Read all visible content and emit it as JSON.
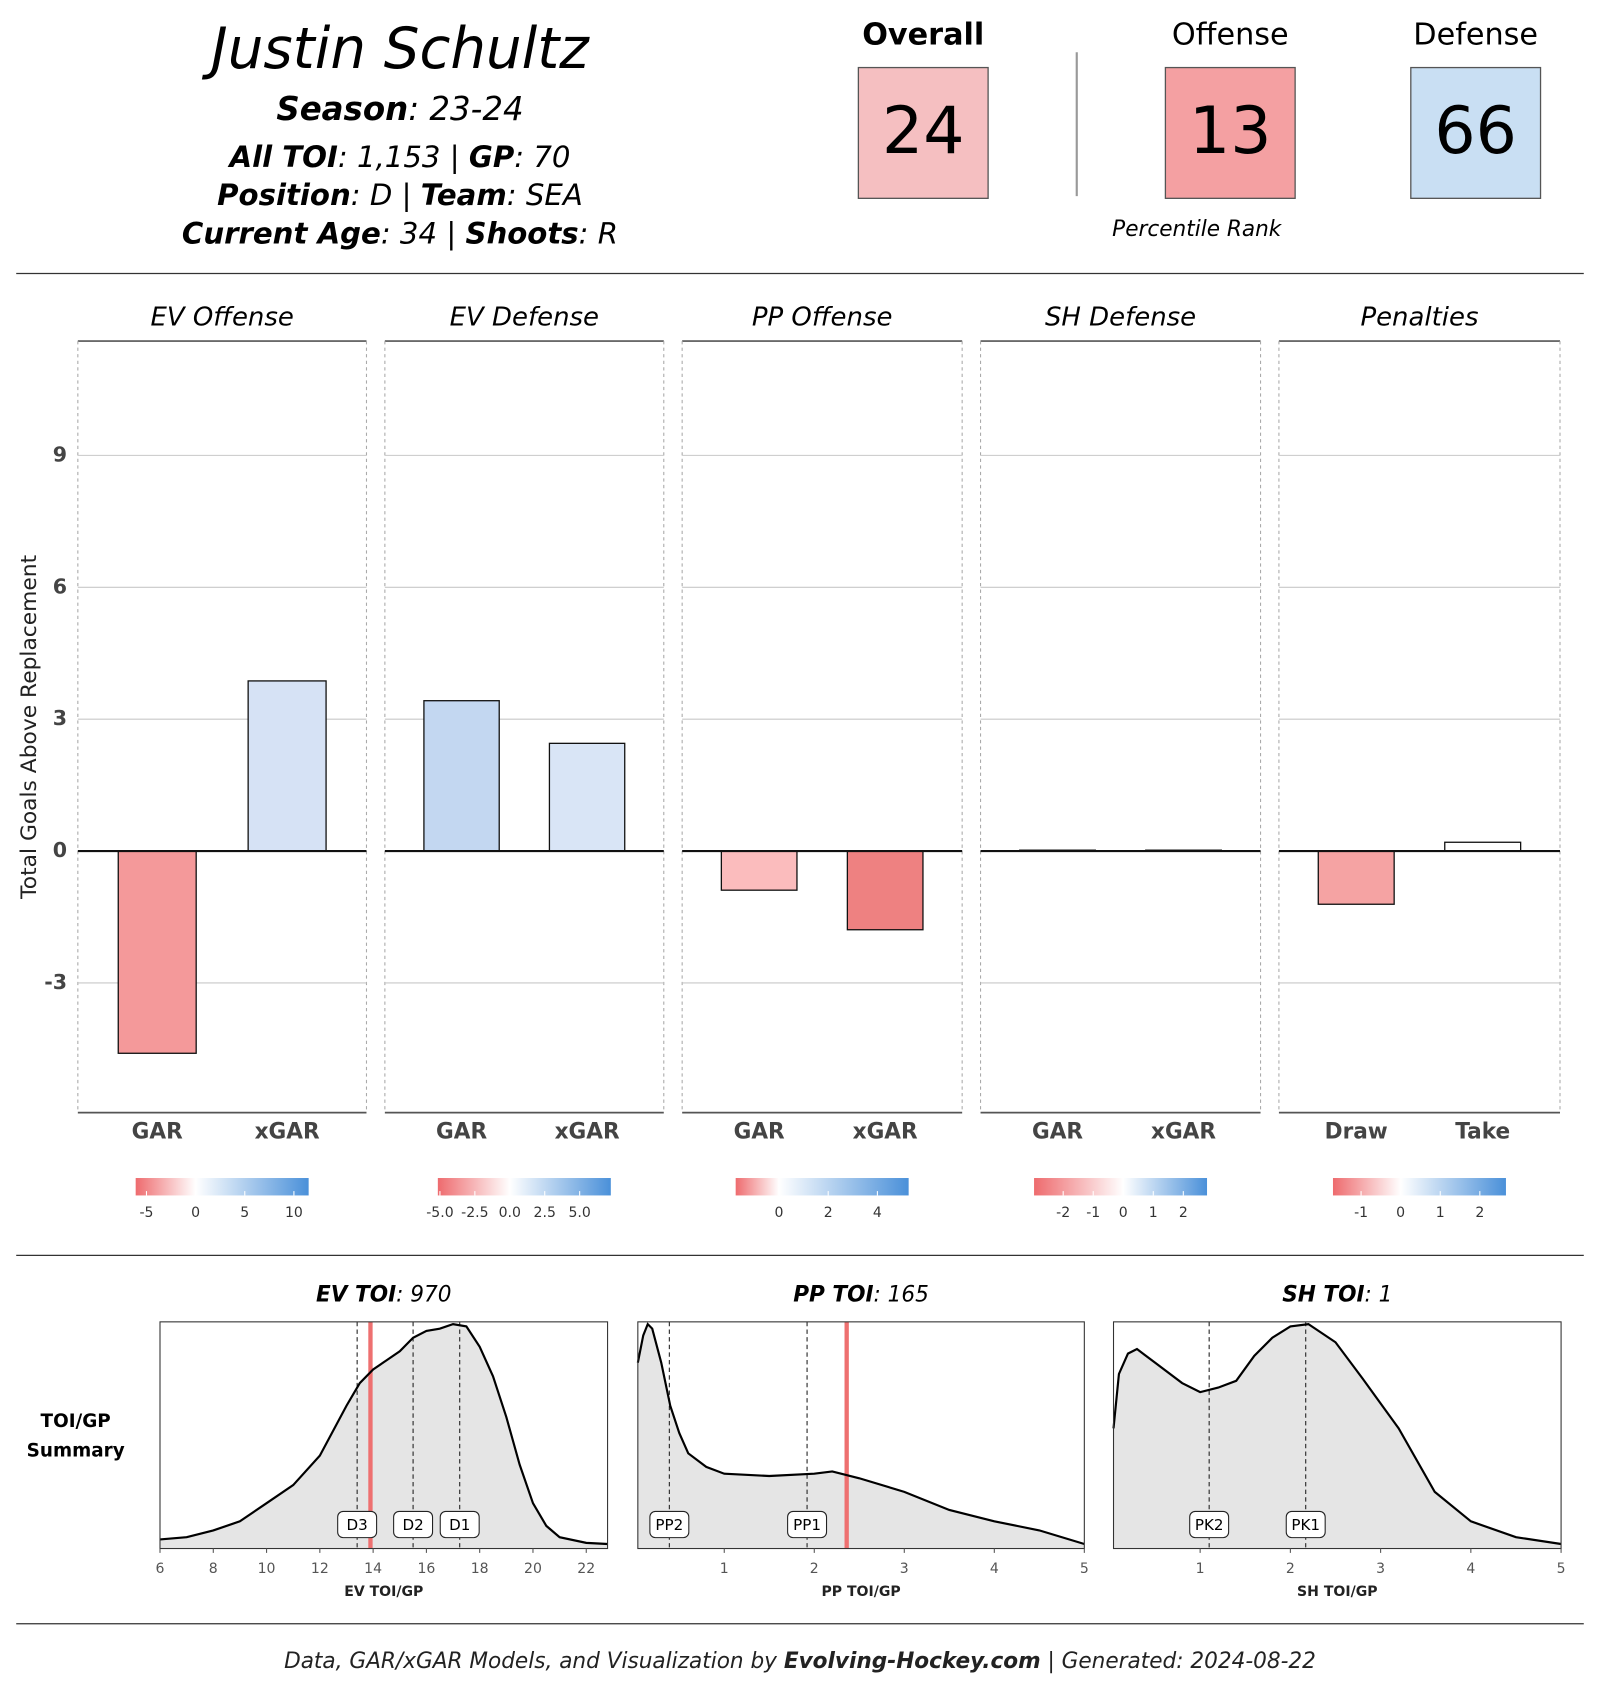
{
  "header": {
    "name": "Justin Schultz",
    "lines": [
      [
        {
          "text": "Season",
          "bold": true
        },
        {
          "text": ": 23-24"
        }
      ],
      [
        {
          "text": "All TOI",
          "bold": true
        },
        {
          "text": ": 1,153 | "
        },
        {
          "text": "GP",
          "bold": true
        },
        {
          "text": ": 70"
        }
      ],
      [
        {
          "text": "Position",
          "bold": true
        },
        {
          "text": ": D | "
        },
        {
          "text": "Team",
          "bold": true
        },
        {
          "text": ": SEA"
        }
      ],
      [
        {
          "text": "Current Age",
          "bold": true
        },
        {
          "text": ": 34 | "
        },
        {
          "text": "Shoots",
          "bold": true
        },
        {
          "text": ": R"
        }
      ]
    ]
  },
  "percentiles": {
    "items": [
      {
        "label": "Overall",
        "value": 24,
        "color": "#f5bfc1",
        "bold": true
      },
      {
        "label": "Offense",
        "value": 13,
        "color": "#f4a0a2",
        "bold": false
      },
      {
        "label": "Defense",
        "value": 66,
        "color": "#c9dff3",
        "bold": false
      }
    ],
    "caption": "Percentile Rank"
  },
  "chart_data": [
    {
      "type": "bar",
      "title": "EV Offense",
      "ylabel": "Total Goals Above Replacement",
      "categories": [
        "GAR",
        "xGAR"
      ],
      "values": [
        -4.6,
        3.87
      ],
      "colors": [
        "#f4999a",
        "#d6e2f5"
      ],
      "ylim": [
        -5.95,
        11.6
      ],
      "yticks": [
        -3,
        0,
        3,
        6,
        9
      ],
      "grid": true,
      "colorbar": {
        "lim": [
          -6.1,
          11.5
        ],
        "ticks": [
          -5,
          0,
          5,
          10
        ],
        "colors": [
          "#ee6b6e",
          "#ffffff",
          "#4a90d9"
        ]
      }
    },
    {
      "type": "bar",
      "title": "EV Defense",
      "categories": [
        "GAR",
        "xGAR"
      ],
      "values": [
        3.42,
        2.45
      ],
      "colors": [
        "#c3d7f1",
        "#d9e5f6"
      ],
      "ylim": [
        -5.95,
        11.6
      ],
      "yticks": [
        -3,
        0,
        3,
        6,
        9
      ],
      "grid": true,
      "colorbar": {
        "lim": [
          -5.15,
          7.23
        ],
        "ticks": [
          {
            "value": -5,
            "label": "-5.0"
          },
          -2.5,
          {
            "value": 0,
            "label": "0.0"
          },
          2.5,
          {
            "value": 5,
            "label": "5.0"
          }
        ],
        "colors": [
          "#ee6b6e",
          "#ffffff",
          "#4a90d9"
        ]
      }
    },
    {
      "type": "bar",
      "title": "PP Offense",
      "categories": [
        "GAR",
        "xGAR"
      ],
      "values": [
        -0.89,
        -1.79
      ],
      "colors": [
        "#fbbcbd",
        "#ee8181"
      ],
      "ylim": [
        -5.95,
        11.6
      ],
      "yticks": [
        -3,
        0,
        3,
        6,
        9
      ],
      "grid": true,
      "colorbar": {
        "lim": [
          -1.76,
          5.27
        ],
        "ticks": [
          0,
          2,
          4
        ],
        "colors": [
          "#ee6b6e",
          "#ffffff",
          "#4a90d9"
        ]
      }
    },
    {
      "type": "bar",
      "title": "SH Defense",
      "categories": [
        "GAR",
        "xGAR"
      ],
      "values": [
        0.02,
        0.02
      ],
      "colors": [
        "#fdf6f6",
        "#f6f8fd"
      ],
      "ylim": [
        -5.95,
        11.6
      ],
      "yticks": [
        -3,
        0,
        3,
        6,
        9
      ],
      "grid": true,
      "colorbar": {
        "lim": [
          -2.97,
          2.79
        ],
        "ticks": [
          -2,
          -1,
          0,
          1,
          2
        ],
        "colors": [
          "#ee6b6e",
          "#ffffff",
          "#4a90d9"
        ]
      }
    },
    {
      "type": "bar",
      "title": "Penalties",
      "categories": [
        "Draw",
        "Take"
      ],
      "values": [
        -1.21,
        0.2
      ],
      "colors": [
        "#f5a3a3",
        "#ffffff"
      ],
      "ylim": [
        -5.95,
        11.6
      ],
      "yticks": [
        -3,
        0,
        3,
        6,
        9
      ],
      "grid": true,
      "colorbar": {
        "lim": [
          -1.71,
          2.66
        ],
        "ticks": [
          -1,
          0,
          1,
          2
        ],
        "colors": [
          "#ee6b6e",
          "#ffffff",
          "#4a90d9"
        ]
      }
    },
    {
      "type": "area",
      "title": [
        {
          "text": "EV TOI",
          "bold": true
        },
        {
          "text": ": 970"
        }
      ],
      "xlabel": "EV TOI/GP",
      "x": [
        6,
        7,
        8,
        9,
        10,
        11,
        12,
        13,
        13.5,
        14,
        14.5,
        15,
        15.5,
        16,
        16.5,
        17,
        17.5,
        18,
        18.5,
        19,
        19.5,
        20,
        20.5,
        21,
        22,
        22.8
      ],
      "values": [
        0.04,
        0.05,
        0.08,
        0.12,
        0.2,
        0.28,
        0.41,
        0.63,
        0.73,
        0.79,
        0.83,
        0.87,
        0.93,
        0.96,
        0.97,
        0.99,
        0.98,
        0.89,
        0.76,
        0.58,
        0.37,
        0.2,
        0.1,
        0.05,
        0.025,
        0.02
      ],
      "xlim": [
        6,
        22.8
      ],
      "xticks": [
        6,
        8,
        10,
        12,
        14,
        16,
        18,
        20,
        22
      ],
      "ylim": [
        0,
        1
      ],
      "color": "#e5e5e5",
      "markers": [
        {
          "label": "D3",
          "x": 13.4
        },
        {
          "label": "D2",
          "x": 15.5
        },
        {
          "label": "D1",
          "x": 17.25
        }
      ],
      "player_x": 13.9,
      "player_color": "#ee7070"
    },
    {
      "type": "area",
      "title": [
        {
          "text": "PP TOI",
          "bold": true
        },
        {
          "text": ": 165"
        }
      ],
      "xlabel": "PP TOI/GP",
      "x": [
        0.04,
        0.1,
        0.15,
        0.2,
        0.3,
        0.4,
        0.5,
        0.6,
        0.8,
        1.0,
        1.5,
        2.0,
        2.2,
        2.5,
        3,
        3.5,
        4,
        4.5,
        5
      ],
      "values": [
        0.82,
        0.94,
        0.99,
        0.97,
        0.82,
        0.63,
        0.51,
        0.42,
        0.36,
        0.33,
        0.32,
        0.33,
        0.34,
        0.31,
        0.25,
        0.17,
        0.12,
        0.08,
        0.02
      ],
      "xlim": [
        0.04,
        5
      ],
      "xticks": [
        1,
        2,
        3,
        4,
        5
      ],
      "ylim": [
        0,
        1
      ],
      "color": "#e5e5e5",
      "markers": [
        {
          "label": "PP2",
          "x": 0.39
        },
        {
          "label": "PP1",
          "x": 1.92
        }
      ],
      "player_x": 2.36,
      "player_color": "#ee7070"
    },
    {
      "type": "area",
      "title": [
        {
          "text": "SH TOI",
          "bold": true
        },
        {
          "text": ": 1"
        }
      ],
      "xlabel": "SH TOI/GP",
      "x": [
        0.04,
        0.1,
        0.2,
        0.3,
        0.5,
        0.8,
        1.0,
        1.2,
        1.4,
        1.6,
        1.8,
        2.0,
        2.2,
        2.5,
        2.8,
        3.2,
        3.6,
        4.0,
        4.5,
        5
      ],
      "values": [
        0.53,
        0.77,
        0.86,
        0.88,
        0.82,
        0.73,
        0.69,
        0.71,
        0.74,
        0.85,
        0.93,
        0.98,
        0.99,
        0.91,
        0.75,
        0.53,
        0.25,
        0.12,
        0.05,
        0.02
      ],
      "xlim": [
        0.04,
        5
      ],
      "xticks": [
        1,
        2,
        3,
        4,
        5
      ],
      "ylim": [
        0,
        1
      ],
      "color": "#e5e5e5",
      "markers": [
        {
          "label": "PK2",
          "x": 1.1
        },
        {
          "label": "PK1",
          "x": 2.17
        }
      ]
    }
  ],
  "toi_label": [
    "TOI/GP",
    "Summary"
  ],
  "footer": [
    {
      "text": "Data, GAR/xGAR Models, and Visualization by "
    },
    {
      "text": "Evolving-Hockey.com",
      "bold": true
    },
    {
      "text": " | Generated: 2024-08-22"
    }
  ]
}
